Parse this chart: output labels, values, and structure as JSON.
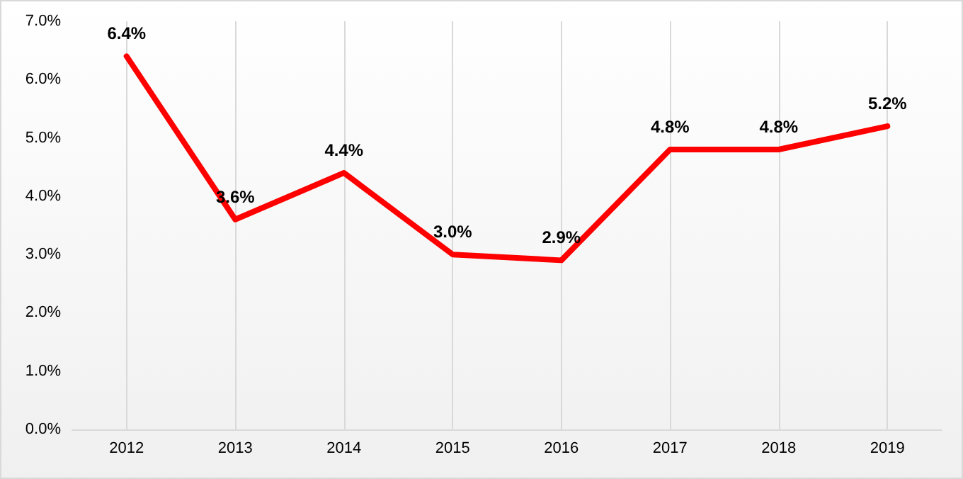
{
  "chart_data": {
    "type": "line",
    "x": [
      2012,
      2013,
      2014,
      2015,
      2016,
      2017,
      2018,
      2019
    ],
    "xlim": [
      2011.5,
      2019.5
    ],
    "xticks": [
      2012,
      2013,
      2014,
      2015,
      2016,
      2017,
      2018,
      2019
    ],
    "series": [
      {
        "color": "#ff0000",
        "values": [
          6.4,
          3.6,
          4.4,
          3.0,
          2.9,
          4.8,
          4.8,
          5.2
        ],
        "value_labels": [
          "6.4%",
          "3.6%",
          "4.4%",
          "3.0%",
          "2.9%",
          "4.8%",
          "4.8%",
          "5.2%"
        ]
      }
    ],
    "ylim": [
      0,
      7
    ],
    "yticks": [
      {
        "value": 0,
        "label": "0.0%"
      },
      {
        "value": 1,
        "label": "1.0%"
      },
      {
        "value": 2,
        "label": "2.0%"
      },
      {
        "value": 3,
        "label": "3.0%"
      },
      {
        "value": 4,
        "label": "4.0%"
      },
      {
        "value": 5,
        "label": "5.0%"
      },
      {
        "value": 6,
        "label": "6.0%"
      },
      {
        "value": 7,
        "label": "7.0%"
      }
    ],
    "grid": "x",
    "marker": "none",
    "line_style": "solid"
  }
}
